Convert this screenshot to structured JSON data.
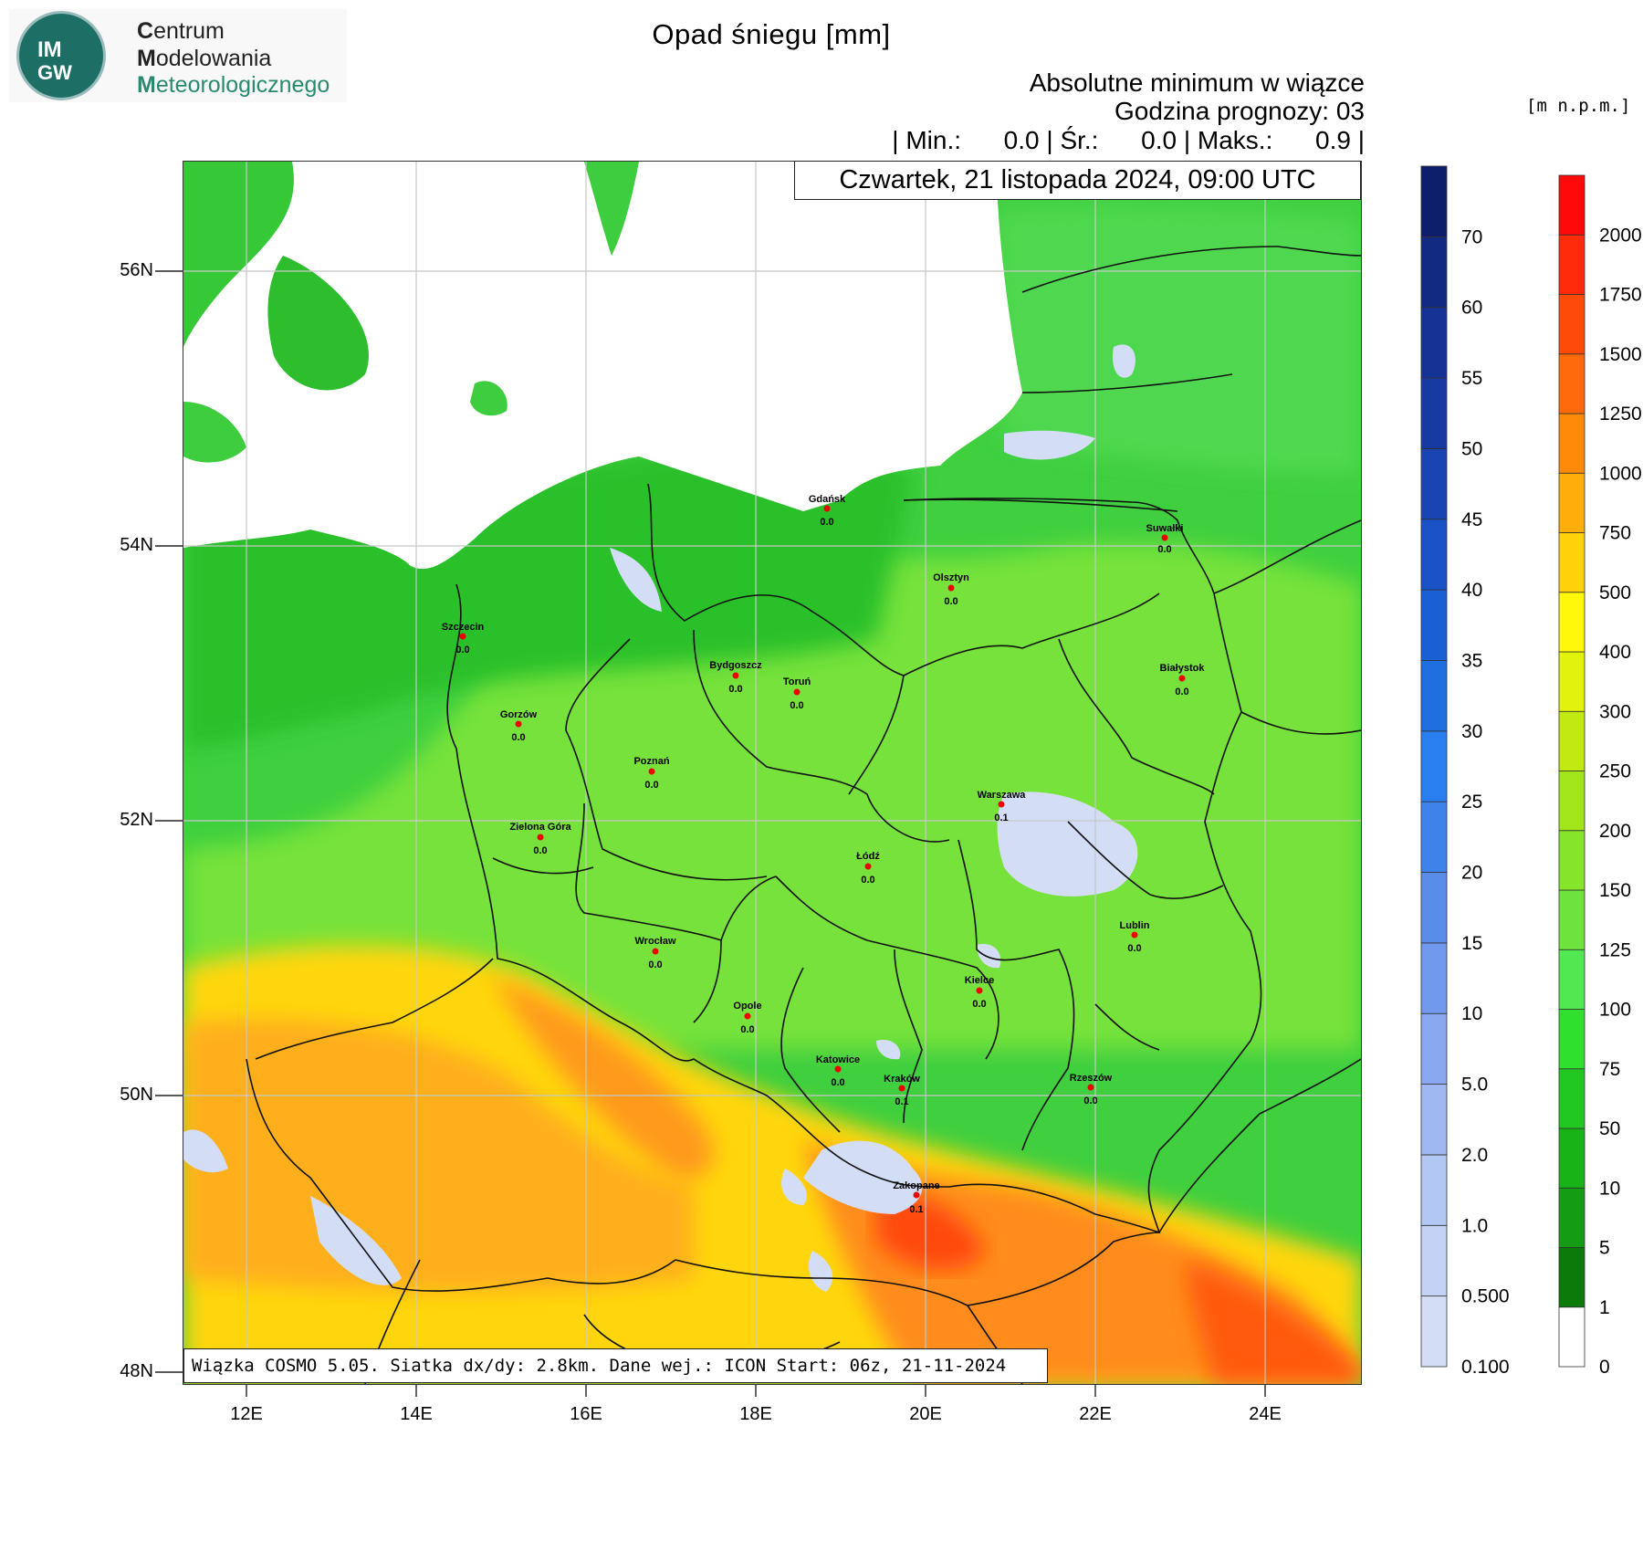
{
  "logo": {
    "badge_line1": "IM",
    "badge_line2": "GW",
    "org_line1_initial": "C",
    "org_line1_rest": "entrum",
    "org_line2_initial": "M",
    "org_line2_rest": "odelowania",
    "org_line3_initial": "M",
    "org_line3_rest": "eteorologicznego"
  },
  "header": {
    "title": "Opad śniegu [mm]",
    "subtitle1": "Absolutne minimum w wiązce",
    "subtitle2": "Godzina prognozy: 03",
    "stats": "| Min.:      0.0 | Śr.:      0.0 | Maks.:      0.9 |",
    "date": "Czwartek, 21 listopada 2024, 09:00 UTC"
  },
  "footer": {
    "text": "Wiązka COSMO 5.05. Siatka dx/dy: 2.8km. Dane wej.: ICON Start: 06z, 21-11-2024"
  },
  "map": {
    "lat_labels": [
      "56N",
      "54N",
      "52N",
      "50N",
      "48N"
    ],
    "lon_labels": [
      "12E",
      "14E",
      "16E",
      "18E",
      "20E",
      "22E",
      "24E"
    ],
    "cities": [
      {
        "name": "Gdańsk",
        "value": "0.0"
      },
      {
        "name": "Suwałki",
        "value": "0.0"
      },
      {
        "name": "Olsztyn",
        "value": "0.0"
      },
      {
        "name": "Szczecin",
        "value": "0.0"
      },
      {
        "name": "Bydgoszcz",
        "value": "0.0"
      },
      {
        "name": "Toruń",
        "value": "0.0"
      },
      {
        "name": "Białystok",
        "value": "0.0"
      },
      {
        "name": "Gorzów",
        "value": "0.0"
      },
      {
        "name": "Poznań",
        "value": "0.0"
      },
      {
        "name": "Warszawa",
        "value": "0.1"
      },
      {
        "name": "Zielona Góra",
        "value": "0.0"
      },
      {
        "name": "Łódź",
        "value": "0.0"
      },
      {
        "name": "Lublin",
        "value": "0.0"
      },
      {
        "name": "Wrocław",
        "value": "0.0"
      },
      {
        "name": "Kielce",
        "value": "0.0"
      },
      {
        "name": "Opole",
        "value": "0.0"
      },
      {
        "name": "Katowice",
        "value": "0.0"
      },
      {
        "name": "Kraków",
        "value": "0.1"
      },
      {
        "name": "Rzeszów",
        "value": "0.0"
      },
      {
        "name": "Zakopane",
        "value": "0.1"
      }
    ]
  },
  "colorbars": {
    "unit": "[m n.p.m.]",
    "precip_labels": [
      "0.100",
      "0.500",
      "1.0",
      "2.0",
      "5.0",
      "10",
      "15",
      "20",
      "25",
      "30",
      "35",
      "40",
      "45",
      "50",
      "55",
      "60",
      "70"
    ],
    "precip_colors": [
      "#d3def6",
      "#c4d3f5",
      "#b3c7f4",
      "#9fb8f1",
      "#8aa8ef",
      "#7099ed",
      "#5a8cea",
      "#3e83ea",
      "#2a7ff0",
      "#1f6fe0",
      "#1a5fd3",
      "#1a51c6",
      "#1944b2",
      "#173aa2",
      "#153394",
      "#122a82",
      "#0d1e6a"
    ],
    "elev_labels": [
      "0",
      "1",
      "5",
      "10",
      "50",
      "75",
      "100",
      "125",
      "150",
      "200",
      "250",
      "300",
      "400",
      "500",
      "750",
      "1000",
      "1250",
      "1500",
      "1750",
      "2000"
    ],
    "elev_colors": [
      "#ffffff",
      "#0b7a0b",
      "#149d14",
      "#17b317",
      "#21c821",
      "#2fe02f",
      "#52e852",
      "#6ee33d",
      "#86e52a",
      "#a1e61a",
      "#c0ea12",
      "#e3f20a",
      "#fff70a",
      "#ffd10a",
      "#ffad0a",
      "#ff8a0a",
      "#ff6a0a",
      "#ff4b0a",
      "#ff2b0a",
      "#ff0a0a"
    ]
  }
}
